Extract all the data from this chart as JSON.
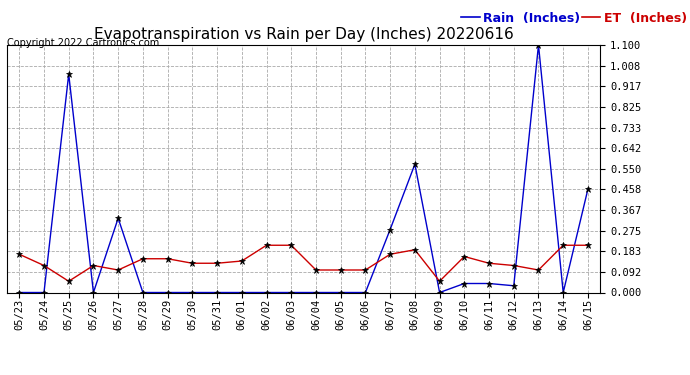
{
  "title": "Evapotranspiration vs Rain per Day (Inches) 20220616",
  "copyright": "Copyright 2022 Cartronics.com",
  "legend_rain": "Rain  (Inches)",
  "legend_et": "ET  (Inches)",
  "x_labels": [
    "05/23",
    "05/24",
    "05/25",
    "05/26",
    "05/27",
    "05/28",
    "05/29",
    "05/30",
    "05/31",
    "06/01",
    "06/02",
    "06/03",
    "06/04",
    "06/05",
    "06/06",
    "06/07",
    "06/08",
    "06/09",
    "06/10",
    "06/11",
    "06/12",
    "06/13",
    "06/14",
    "06/15"
  ],
  "rain_values": [
    0.0,
    0.0,
    0.97,
    0.0,
    0.33,
    0.0,
    0.0,
    0.0,
    0.0,
    0.0,
    0.0,
    0.0,
    0.0,
    0.0,
    0.0,
    0.28,
    0.57,
    0.0,
    0.04,
    0.04,
    0.03,
    1.1,
    0.0,
    0.46
  ],
  "et_values": [
    0.17,
    0.12,
    0.05,
    0.12,
    0.1,
    0.15,
    0.15,
    0.13,
    0.13,
    0.14,
    0.21,
    0.21,
    0.1,
    0.1,
    0.1,
    0.17,
    0.19,
    0.05,
    0.16,
    0.13,
    0.12,
    0.1,
    0.21,
    0.21
  ],
  "rain_color": "#0000cc",
  "et_color": "#cc0000",
  "ylim": [
    0.0,
    1.1
  ],
  "yticks": [
    0.0,
    0.092,
    0.183,
    0.275,
    0.367,
    0.458,
    0.55,
    0.642,
    0.733,
    0.825,
    0.917,
    1.008,
    1.1
  ],
  "background_color": "#ffffff",
  "grid_color": "#aaaaaa",
  "title_fontsize": 11,
  "tick_fontsize": 7.5,
  "legend_fontsize": 9,
  "copyright_fontsize": 7
}
